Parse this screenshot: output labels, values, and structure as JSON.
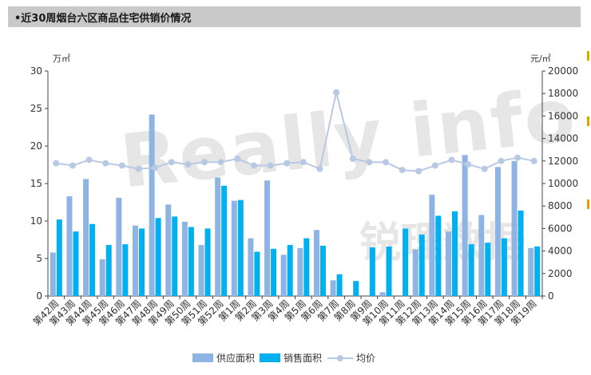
{
  "header": {
    "title": "•近30周烟台六区商品住宅供销价情况"
  },
  "watermark": {
    "brand": "Really info",
    "cn": "锐理数据"
  },
  "units": {
    "left": "万㎡",
    "right": "元/㎡"
  },
  "colors": {
    "supply": "#8eb4e3",
    "sales": "#00b0f0",
    "price": "#b8c9e3",
    "axis": "#444444"
  },
  "chart_data": {
    "type": "bar",
    "categories": [
      "第42周",
      "第43周",
      "第44周",
      "第45周",
      "第46周",
      "第47周",
      "第48周",
      "第49周",
      "第50周",
      "第51周",
      "第52周",
      "第1周",
      "第2周",
      "第3周",
      "第4周",
      "第5周",
      "第6周",
      "第7周",
      "第8周",
      "第9周",
      "第10周",
      "第11周",
      "第12周",
      "第13周",
      "第14周",
      "第15周",
      "第16周",
      "第17周",
      "第18周",
      "第19周"
    ],
    "series": [
      {
        "name": "供应面积",
        "axis": "left",
        "kind": "bar",
        "values": [
          5.8,
          13.3,
          15.6,
          4.9,
          13.1,
          9.4,
          24.2,
          12.2,
          9.9,
          6.8,
          15.8,
          12.7,
          7.7,
          15.4,
          5.5,
          6.4,
          8.8,
          2.1,
          0,
          0,
          0.5,
          0,
          6.2,
          13.5,
          8.6,
          18.8,
          10.8,
          17.2,
          18.0,
          6.4
        ]
      },
      {
        "name": "销售面积",
        "axis": "left",
        "kind": "bar",
        "values": [
          10.2,
          8.6,
          9.6,
          6.8,
          6.9,
          9.0,
          10.4,
          10.6,
          9.2,
          9.0,
          14.7,
          12.8,
          5.9,
          6.3,
          6.8,
          7.7,
          6.7,
          2.9,
          2.0,
          6.5,
          6.6,
          9.0,
          8.2,
          10.7,
          11.3,
          6.9,
          7.1,
          7.7,
          11.4,
          6.6
        ]
      },
      {
        "name": "均价",
        "axis": "right",
        "kind": "line",
        "values": [
          11800,
          11600,
          12100,
          11800,
          11600,
          11300,
          11400,
          11900,
          11700,
          11900,
          11900,
          12200,
          11600,
          11600,
          11800,
          11900,
          11300,
          18100,
          12200,
          11900,
          11900,
          11200,
          11100,
          11600,
          12100,
          11700,
          11300,
          12000,
          12300,
          12000
        ]
      }
    ],
    "y_left": {
      "min": 0,
      "max": 30,
      "ticks": [
        0,
        5,
        10,
        15,
        20,
        25,
        30
      ]
    },
    "y_right": {
      "min": 0,
      "max": 20000,
      "ticks": [
        0,
        2000,
        4000,
        6000,
        8000,
        10000,
        12000,
        14000,
        16000,
        18000,
        20000
      ]
    },
    "legend_position": "bottom"
  }
}
